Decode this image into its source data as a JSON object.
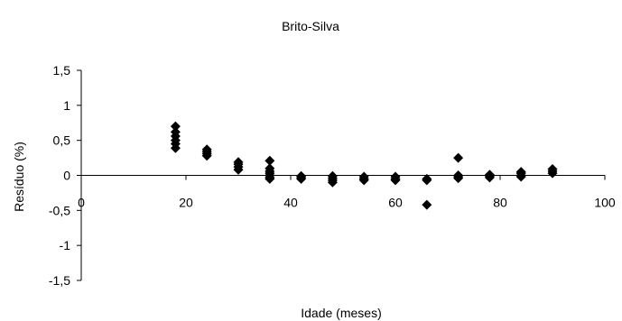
{
  "chart_data": {
    "type": "scatter",
    "title": "Brito-Silva",
    "xlabel": "Idade (meses)",
    "ylabel": "Resíduo (%)",
    "xlim": [
      0,
      100
    ],
    "ylim": [
      -1.5,
      1.5
    ],
    "x_ticks": [
      0,
      20,
      40,
      60,
      80,
      100
    ],
    "x_tick_labels": [
      "0",
      "20",
      "40",
      "60",
      "80",
      "100"
    ],
    "y_ticks": [
      -1.5,
      -1,
      -0.5,
      0,
      0.5,
      1,
      1.5
    ],
    "y_tick_labels": [
      "-1,5",
      "-1",
      "-0,5",
      "0",
      "0,5",
      "1",
      "1,5"
    ],
    "marker": "diamond",
    "marker_color": "#000000",
    "grid": false,
    "legend": "none",
    "series": [
      {
        "points": [
          [
            18,
            0.7
          ],
          [
            18,
            0.62
          ],
          [
            18,
            0.56
          ],
          [
            18,
            0.5
          ],
          [
            18,
            0.45
          ],
          [
            18,
            0.39
          ],
          [
            24,
            0.37
          ],
          [
            24,
            0.34
          ],
          [
            24,
            0.31
          ],
          [
            24,
            0.28
          ],
          [
            30,
            0.19
          ],
          [
            30,
            0.16
          ],
          [
            30,
            0.12
          ],
          [
            30,
            0.08
          ],
          [
            36,
            0.21
          ],
          [
            36,
            0.1
          ],
          [
            36,
            0.06
          ],
          [
            36,
            0.03
          ],
          [
            36,
            0.0
          ],
          [
            36,
            -0.03
          ],
          [
            36,
            -0.05
          ],
          [
            42,
            -0.01
          ],
          [
            42,
            -0.03
          ],
          [
            42,
            -0.05
          ],
          [
            48,
            -0.01
          ],
          [
            48,
            -0.04
          ],
          [
            48,
            -0.07
          ],
          [
            48,
            -0.1
          ],
          [
            54,
            -0.02
          ],
          [
            54,
            -0.05
          ],
          [
            54,
            -0.07
          ],
          [
            60,
            -0.02
          ],
          [
            60,
            -0.05
          ],
          [
            60,
            -0.07
          ],
          [
            66,
            -0.05
          ],
          [
            66,
            -0.07
          ],
          [
            66,
            -0.42
          ],
          [
            72,
            0.25
          ],
          [
            72,
            0.0
          ],
          [
            72,
            -0.02
          ],
          [
            72,
            -0.04
          ],
          [
            78,
            0.01
          ],
          [
            78,
            -0.01
          ],
          [
            78,
            -0.03
          ],
          [
            84,
            0.05
          ],
          [
            84,
            0.03
          ],
          [
            84,
            0.0
          ],
          [
            84,
            -0.02
          ],
          [
            90,
            0.09
          ],
          [
            90,
            0.06
          ],
          [
            90,
            0.03
          ]
        ]
      }
    ]
  }
}
